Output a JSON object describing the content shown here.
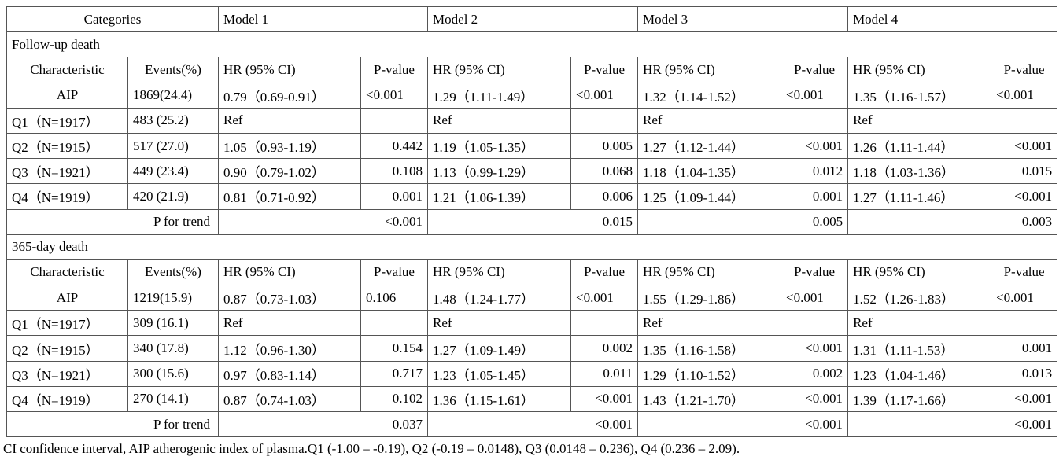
{
  "header": {
    "categories": "Categories",
    "models": [
      "Model 1",
      "Model 2",
      "Model 3",
      "Model 4"
    ]
  },
  "sections": [
    {
      "title": "Follow-up death",
      "columns": [
        "Characteristic",
        "Events(%)",
        "HR (95% CI)",
        "P-value",
        "HR (95% CI)",
        "P-value",
        "HR (95% CI)",
        "P-value",
        "HR (95% CI)",
        "P-value"
      ],
      "rows": [
        [
          "AIP",
          "1869(24.4)",
          "0.79（0.69-0.91）",
          "<0.001",
          "1.29（1.11-1.49）",
          "<0.001",
          "1.32（1.14-1.52）",
          "<0.001",
          "1.35（1.16-1.57）",
          "<0.001"
        ],
        [
          "Q1（N=1917）",
          "483 (25.2)",
          "Ref",
          null,
          "Ref",
          null,
          "Ref",
          null,
          "Ref",
          null
        ],
        [
          "Q2（N=1915）",
          "517 (27.0)",
          "1.05（0.93-1.19）",
          "0.442",
          "1.19（1.05-1.35）",
          "0.005",
          "1.27（1.12-1.44）",
          "<0.001",
          "1.26（1.11-1.44）",
          "<0.001"
        ],
        [
          "Q3（N=1921）",
          "449 (23.4)",
          "0.90（0.79-1.02）",
          "0.108",
          "1.13（0.99-1.29）",
          "0.068",
          "1.18（1.04-1.35）",
          "0.012",
          "1.18（1.03-1.36）",
          "0.015"
        ],
        [
          "Q4（N=1919）",
          "420 (21.9)",
          "0.81（0.71-0.92）",
          "0.001",
          "1.21（1.06-1.39）",
          "0.006",
          "1.25（1.09-1.44）",
          "0.001",
          "1.27（1.11-1.46）",
          "<0.001"
        ]
      ],
      "trend": {
        "label": "P for trend",
        "values": [
          "<0.001",
          "0.015",
          "0.005",
          "0.003"
        ]
      }
    },
    {
      "title": "365-day death",
      "columns": [
        "Characteristic",
        "Events(%)",
        "HR (95% CI)",
        "P-value",
        "HR (95% CI)",
        "P-value",
        "HR (95% CI)",
        "P-value",
        "HR (95% CI)",
        "P-value"
      ],
      "rows": [
        [
          "AIP",
          "1219(15.9)",
          "0.87（0.73-1.03）",
          "0.106",
          "1.48（1.24-1.77）",
          "<0.001",
          "1.55（1.29-1.86）",
          "<0.001",
          "1.52（1.26-1.83）",
          "<0.001"
        ],
        [
          "Q1（N=1917）",
          "309 (16.1)",
          "Ref",
          null,
          "Ref",
          null,
          "Ref",
          null,
          "Ref",
          null
        ],
        [
          "Q2（N=1915）",
          "340 (17.8)",
          "1.12（0.96-1.30）",
          "0.154",
          "1.27（1.09-1.49）",
          "0.002",
          "1.35（1.16-1.58）",
          "<0.001",
          "1.31（1.11-1.53）",
          "0.001"
        ],
        [
          "Q3（N=1921）",
          "300 (15.6)",
          "0.97（0.83-1.14）",
          "0.717",
          "1.23（1.05-1.45）",
          "0.011",
          "1.29（1.10-1.52）",
          "0.002",
          "1.23（1.04-1.46）",
          "0.013"
        ],
        [
          "Q4（N=1919）",
          "270 (14.1)",
          "0.87（0.74-1.03）",
          "0.102",
          "1.36（1.15-1.61）",
          "<0.001",
          "1.43（1.21-1.70）",
          "<0.001",
          "1.39（1.17-1.66）",
          "<0.001"
        ]
      ],
      "trend": {
        "label": "P for trend",
        "values": [
          "0.037",
          "<0.001",
          "<0.001",
          "<0.001"
        ]
      }
    }
  ],
  "footnote": "CI confidence interval, AIP atherogenic index of plasma.Q1 (-1.00 – -0.19), Q2 (-0.19 – 0.0148), Q3 (0.0148 – 0.236), Q4 (0.236 – 2.09)."
}
